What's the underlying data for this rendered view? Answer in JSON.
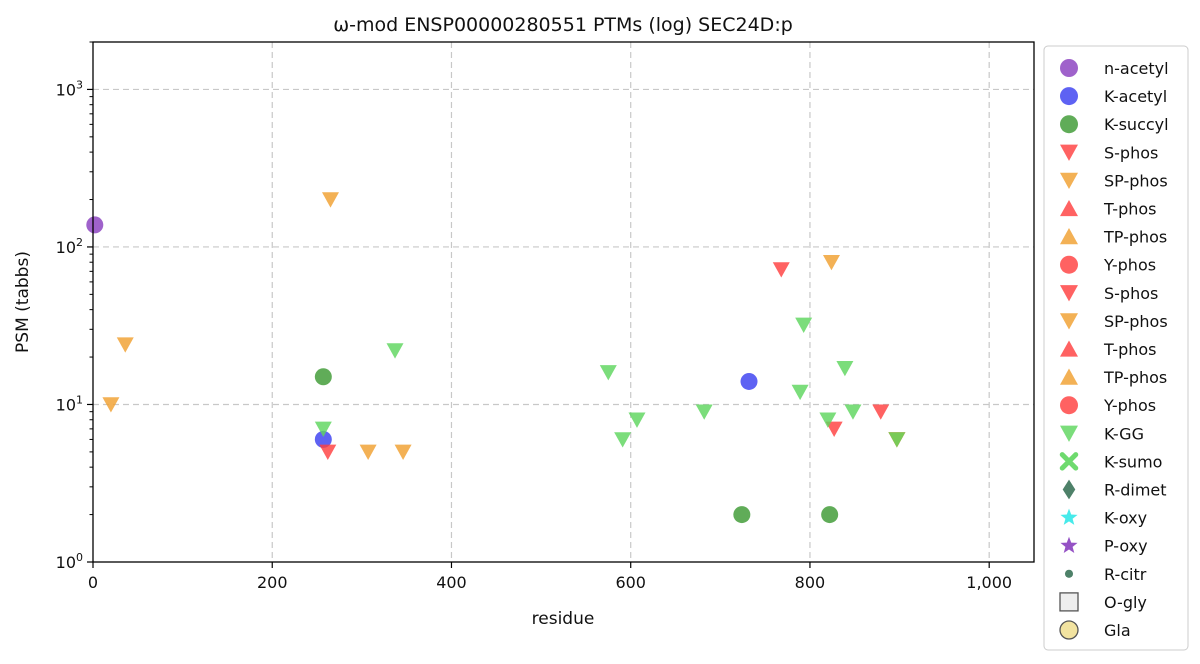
{
  "chart_data": {
    "type": "scatter",
    "title": "ω-mod ENSP00000280551 PTMs (log) SEC24D:p",
    "xlabel": "residue",
    "ylabel": "PSM (tabbs)",
    "xlim": [
      0,
      1050
    ],
    "ylim": [
      1,
      2000
    ],
    "yscale": "log",
    "grid": true,
    "legend_position": "outside-right",
    "x_ticks": [
      {
        "value": 0,
        "label": "0"
      },
      {
        "value": 200,
        "label": "200"
      },
      {
        "value": 400,
        "label": "400"
      },
      {
        "value": 600,
        "label": "600"
      },
      {
        "value": 800,
        "label": "800"
      },
      {
        "value": 1000,
        "label": "1,000"
      }
    ],
    "y_ticks": [
      {
        "value": 1,
        "base": "10",
        "exp": "0"
      },
      {
        "value": 10,
        "base": "10",
        "exp": "1"
      },
      {
        "value": 100,
        "base": "10",
        "exp": "2"
      },
      {
        "value": 1000,
        "base": "10",
        "exp": "3"
      }
    ],
    "series": [
      {
        "name": "n-acetyl",
        "marker": "circle",
        "color": "#8a3fbf",
        "points": [
          [
            2,
            138
          ]
        ]
      },
      {
        "name": "K-acetyl",
        "marker": "circle",
        "color": "#3a3ff0",
        "points": [
          [
            257,
            6
          ],
          [
            732,
            14
          ]
        ]
      },
      {
        "name": "K-succyl",
        "marker": "circle",
        "color": "#3d9a33",
        "points": [
          [
            257,
            15
          ],
          [
            724,
            2
          ],
          [
            822,
            2
          ]
        ]
      },
      {
        "name": "S-phos",
        "marker": "triangle-down",
        "color": "#ff4040",
        "points": [
          [
            262,
            5
          ],
          [
            768,
            72
          ],
          [
            827,
            7
          ],
          [
            879,
            9
          ],
          [
            897,
            6
          ]
        ]
      },
      {
        "name": "SP-phos",
        "marker": "triangle-down",
        "color": "#f0a030",
        "points": [
          [
            20,
            10
          ],
          [
            36,
            24
          ],
          [
            265,
            200
          ],
          [
            307,
            5
          ],
          [
            346,
            5
          ],
          [
            824,
            80
          ],
          [
            897,
            6
          ]
        ]
      },
      {
        "name": "T-phos",
        "marker": "triangle-up",
        "color": "#ff4040",
        "points": []
      },
      {
        "name": "TP-phos",
        "marker": "triangle-up",
        "color": "#f0a030",
        "points": []
      },
      {
        "name": "Y-phos",
        "marker": "circle",
        "color": "#ff4040",
        "points": []
      },
      {
        "name": "S-phos",
        "marker": "triangle-down",
        "color": "#ff4040",
        "points": []
      },
      {
        "name": "SP-phos",
        "marker": "triangle-down",
        "color": "#f0a030",
        "points": []
      },
      {
        "name": "T-phos",
        "marker": "triangle-up",
        "color": "#ff4040",
        "points": []
      },
      {
        "name": "TP-phos",
        "marker": "triangle-up",
        "color": "#f0a030",
        "points": []
      },
      {
        "name": "Y-phos",
        "marker": "circle",
        "color": "#ff4040",
        "points": []
      },
      {
        "name": "K-GG",
        "marker": "triangle-down",
        "color": "#5ed65e",
        "points": [
          [
            257,
            7
          ],
          [
            337,
            22
          ],
          [
            575,
            16
          ],
          [
            591,
            6
          ],
          [
            607,
            8
          ],
          [
            682,
            9
          ],
          [
            789,
            12
          ],
          [
            793,
            32
          ],
          [
            820,
            8
          ],
          [
            839,
            17
          ],
          [
            848,
            9
          ],
          [
            897,
            6
          ]
        ]
      },
      {
        "name": "K-sumo",
        "marker": "x",
        "color": "#5ed65e",
        "points": []
      },
      {
        "name": "R-dimet",
        "marker": "diamond",
        "color": "#2f6b4f",
        "points": []
      },
      {
        "name": "K-oxy",
        "marker": "star",
        "color": "#33e8e8",
        "points": []
      },
      {
        "name": "P-oxy",
        "marker": "star",
        "color": "#8a3fbf",
        "points": []
      },
      {
        "name": "R-citr",
        "marker": "small-circle",
        "color": "#2f6b4f",
        "points": []
      },
      {
        "name": "O-gly",
        "marker": "square-open",
        "color": "#eeeeee",
        "points": []
      },
      {
        "name": "Gla",
        "marker": "circle-open",
        "color": "#f2e3a0",
        "points": []
      }
    ]
  }
}
